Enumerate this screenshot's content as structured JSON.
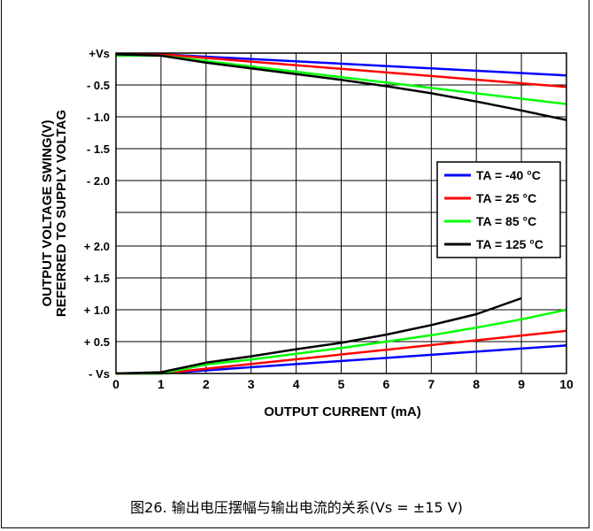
{
  "figure_caption": "图26. 输出电压摆幅与输出电流的关系(Vs = ±15 V)",
  "chart_data": {
    "type": "line",
    "xlabel": "OUTPUT CURRENT (mA)",
    "ylabel_line1": "OUTPUT VOLTAGE SWING(V)",
    "ylabel_line2": "REFERRED TO SUPPLY VOLTAG",
    "xlim": [
      0,
      10
    ],
    "x_ticks": [
      "0",
      "1",
      "2",
      "3",
      "4",
      "5",
      "6",
      "7",
      "8",
      "9",
      "10"
    ],
    "grid": true,
    "legend_position": "right-middle",
    "upper_panel": {
      "description": "Output voltage swing below +Vs",
      "ylim": [
        0,
        2.5
      ],
      "y_ticks": [
        "+Vs",
        "- 0.5",
        "- 1.0",
        "- 1.5",
        "- 2.0"
      ],
      "series": [
        {
          "name": "TA = -40 °C",
          "color": "#0000ff",
          "x": [
            0,
            1,
            10
          ],
          "y": [
            0.02,
            0.02,
            0.35
          ]
        },
        {
          "name": "TA = 25 °C",
          "color": "#ff0000",
          "x": [
            0,
            1,
            10
          ],
          "y": [
            0.02,
            0.02,
            0.53
          ]
        },
        {
          "name": "TA = 85 °C",
          "color": "#00ff00",
          "x": [
            0,
            1,
            10
          ],
          "y": [
            0.04,
            0.04,
            0.8
          ]
        },
        {
          "name": "TA = 125 °C",
          "color": "#000000",
          "x": [
            0,
            1,
            2,
            3,
            4,
            5,
            6,
            7,
            8,
            9,
            10
          ],
          "y": [
            0.02,
            0.04,
            0.15,
            0.24,
            0.33,
            0.42,
            0.52,
            0.63,
            0.76,
            0.9,
            1.05
          ]
        }
      ]
    },
    "lower_panel": {
      "description": "Output voltage swing above -Vs",
      "ylim": [
        0,
        2.5
      ],
      "y_ticks": [
        "- Vs",
        "+ 0.5",
        "+ 1.0",
        "+ 1.5",
        "+ 2.0"
      ],
      "series": [
        {
          "name": "TA = -40 °C",
          "color": "#0000ff",
          "x": [
            0,
            1,
            10
          ],
          "y": [
            0.0,
            0.0,
            0.44
          ]
        },
        {
          "name": "TA = 25 °C",
          "color": "#ff0000",
          "x": [
            0,
            1,
            10
          ],
          "y": [
            0.0,
            0.0,
            0.67
          ]
        },
        {
          "name": "TA = 85 °C",
          "color": "#00ff00",
          "x": [
            0,
            1,
            2,
            3,
            4,
            5,
            6,
            7,
            8,
            9,
            10
          ],
          "y": [
            0.0,
            0.0,
            0.14,
            0.22,
            0.31,
            0.4,
            0.5,
            0.6,
            0.72,
            0.85,
            1.0
          ]
        },
        {
          "name": "TA = 125 °C",
          "color": "#000000",
          "x": [
            0,
            1,
            2,
            3,
            4,
            5,
            6,
            7,
            8,
            9
          ],
          "y": [
            0.0,
            0.02,
            0.17,
            0.27,
            0.38,
            0.48,
            0.61,
            0.76,
            0.93,
            1.18
          ]
        }
      ]
    }
  }
}
